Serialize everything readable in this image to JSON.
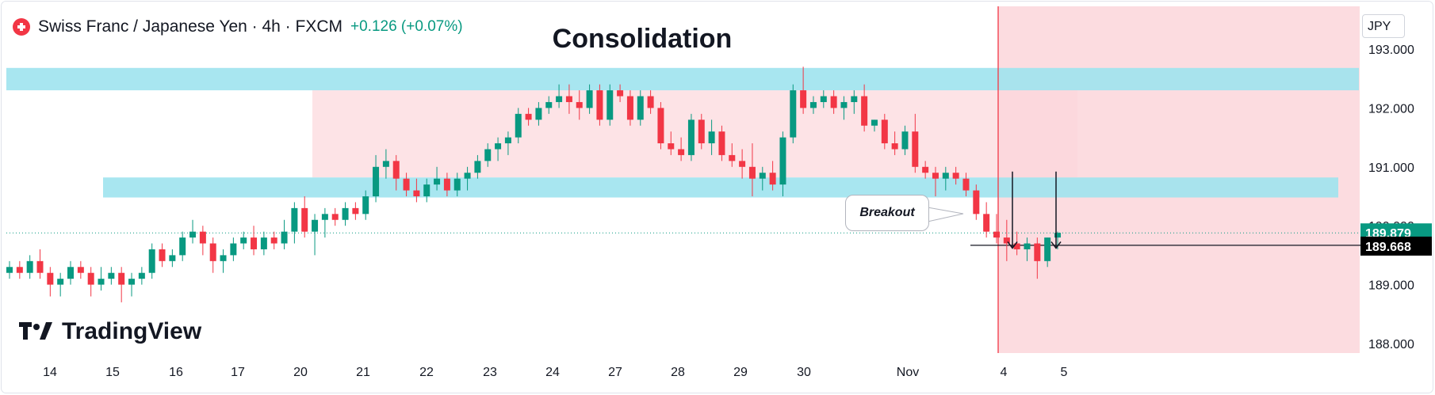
{
  "header": {
    "symbol": "Swiss Franc / Japanese Yen · 4h · FXCM",
    "change": "+0.126 (+0.07%)"
  },
  "annotations": {
    "title": "Consolidation",
    "callout": "Breakout"
  },
  "currency_button": "JPY",
  "logo_text": "TradingView",
  "colors": {
    "up": "#089981",
    "down": "#f23645",
    "zone": "#9fe3ee",
    "range": "#fde3e6"
  },
  "chart_data": {
    "type": "candlestick",
    "y_axis": {
      "ticks": [
        193.0,
        192.0,
        191.0,
        190.0,
        189.0,
        188.0
      ],
      "tick_labels": [
        "193.000",
        "192.000",
        "191.000",
        "190.000",
        "189.000",
        "188.000"
      ],
      "ylim": [
        187.85,
        193.4
      ]
    },
    "x_axis": {
      "tick_labels": [
        "14",
        "15",
        "16",
        "17",
        "20",
        "21",
        "22",
        "23",
        "24",
        "27",
        "28",
        "29",
        "30",
        "Nov",
        "4",
        "5"
      ]
    },
    "price_labels": [
      {
        "value": 189.879,
        "label": "189.879",
        "color": "#089981"
      },
      {
        "value": 189.668,
        "label": "189.668",
        "color": "#000000"
      }
    ],
    "zones": [
      {
        "name": "resistance",
        "low": 192.3,
        "high": 192.68
      },
      {
        "name": "support",
        "low": 190.48,
        "high": 190.82
      }
    ],
    "candles": [
      [
        189.2,
        189.4,
        189.1,
        189.3
      ],
      [
        189.3,
        189.4,
        189.1,
        189.2
      ],
      [
        189.2,
        189.5,
        189.1,
        189.4
      ],
      [
        189.4,
        189.6,
        189.1,
        189.2
      ],
      [
        189.2,
        189.3,
        188.8,
        189.0
      ],
      [
        189.0,
        189.2,
        188.8,
        189.1
      ],
      [
        189.1,
        189.4,
        189.0,
        189.3
      ],
      [
        189.3,
        189.4,
        189.1,
        189.2
      ],
      [
        189.2,
        189.3,
        188.8,
        189.0
      ],
      [
        189.0,
        189.3,
        188.9,
        189.1
      ],
      [
        189.1,
        189.3,
        189.0,
        189.2
      ],
      [
        189.2,
        189.3,
        188.7,
        189.0
      ],
      [
        189.0,
        189.2,
        188.8,
        189.1
      ],
      [
        189.1,
        189.3,
        189.0,
        189.2
      ],
      [
        189.2,
        189.7,
        189.1,
        189.6
      ],
      [
        189.6,
        189.7,
        189.3,
        189.4
      ],
      [
        189.4,
        189.6,
        189.3,
        189.5
      ],
      [
        189.5,
        189.9,
        189.4,
        189.8
      ],
      [
        189.8,
        190.1,
        189.7,
        189.9
      ],
      [
        189.9,
        190.0,
        189.5,
        189.7
      ],
      [
        189.7,
        189.8,
        189.2,
        189.4
      ],
      [
        189.4,
        189.6,
        189.2,
        189.5
      ],
      [
        189.5,
        189.8,
        189.4,
        189.7
      ],
      [
        189.7,
        189.9,
        189.6,
        189.8
      ],
      [
        189.8,
        190.0,
        189.5,
        189.6
      ],
      [
        189.6,
        189.9,
        189.5,
        189.8
      ],
      [
        189.8,
        189.9,
        189.6,
        189.7
      ],
      [
        189.7,
        190.1,
        189.6,
        189.9
      ],
      [
        189.9,
        190.4,
        189.7,
        190.3
      ],
      [
        190.3,
        190.5,
        189.8,
        189.9
      ],
      [
        189.9,
        190.2,
        189.5,
        190.1
      ],
      [
        190.1,
        190.3,
        189.8,
        190.2
      ],
      [
        190.2,
        190.3,
        190.0,
        190.1
      ],
      [
        190.1,
        190.4,
        190.0,
        190.3
      ],
      [
        190.3,
        190.4,
        190.1,
        190.2
      ],
      [
        190.2,
        190.6,
        190.1,
        190.5
      ],
      [
        190.5,
        191.2,
        190.4,
        191.0
      ],
      [
        191.0,
        191.3,
        190.8,
        191.1
      ],
      [
        191.1,
        191.2,
        190.6,
        190.8
      ],
      [
        190.8,
        190.9,
        190.5,
        190.6
      ],
      [
        190.6,
        190.8,
        190.4,
        190.5
      ],
      [
        190.5,
        190.8,
        190.4,
        190.7
      ],
      [
        190.7,
        191.0,
        190.6,
        190.8
      ],
      [
        190.8,
        190.9,
        190.5,
        190.6
      ],
      [
        190.6,
        190.9,
        190.5,
        190.8
      ],
      [
        190.8,
        191.0,
        190.6,
        190.9
      ],
      [
        190.9,
        191.2,
        190.8,
        191.1
      ],
      [
        191.1,
        191.4,
        191.0,
        191.3
      ],
      [
        191.3,
        191.5,
        191.1,
        191.4
      ],
      [
        191.4,
        191.6,
        191.2,
        191.5
      ],
      [
        191.5,
        192.0,
        191.4,
        191.9
      ],
      [
        191.9,
        192.0,
        191.7,
        191.8
      ],
      [
        191.8,
        192.1,
        191.7,
        192.0
      ],
      [
        192.0,
        192.2,
        191.9,
        192.1
      ],
      [
        192.1,
        192.4,
        192.0,
        192.2
      ],
      [
        192.2,
        192.4,
        191.9,
        192.1
      ],
      [
        192.1,
        192.3,
        191.8,
        192.0
      ],
      [
        192.0,
        192.4,
        191.9,
        192.3
      ],
      [
        192.3,
        192.4,
        191.7,
        191.8
      ],
      [
        191.8,
        192.4,
        191.7,
        192.3
      ],
      [
        192.3,
        192.4,
        192.1,
        192.2
      ],
      [
        192.2,
        192.3,
        191.7,
        191.8
      ],
      [
        191.8,
        192.3,
        191.7,
        192.2
      ],
      [
        192.2,
        192.3,
        191.9,
        192.0
      ],
      [
        192.0,
        192.1,
        191.3,
        191.4
      ],
      [
        191.4,
        191.6,
        191.2,
        191.3
      ],
      [
        191.3,
        191.5,
        191.1,
        191.2
      ],
      [
        191.2,
        191.9,
        191.1,
        191.8
      ],
      [
        191.8,
        191.9,
        191.3,
        191.4
      ],
      [
        191.4,
        191.8,
        191.2,
        191.6
      ],
      [
        191.6,
        191.7,
        191.1,
        191.2
      ],
      [
        191.2,
        191.4,
        191.0,
        191.1
      ],
      [
        191.1,
        191.3,
        190.8,
        191.0
      ],
      [
        191.0,
        191.4,
        190.5,
        190.8
      ],
      [
        190.8,
        191.0,
        190.6,
        190.9
      ],
      [
        190.9,
        191.1,
        190.6,
        190.7
      ],
      [
        190.7,
        191.6,
        190.5,
        191.5
      ],
      [
        191.5,
        192.4,
        191.4,
        192.3
      ],
      [
        192.3,
        192.7,
        191.9,
        192.0
      ],
      [
        192.0,
        192.2,
        191.9,
        192.1
      ],
      [
        192.1,
        192.3,
        192.0,
        192.2
      ],
      [
        192.2,
        192.3,
        191.9,
        192.0
      ],
      [
        192.0,
        192.2,
        191.8,
        192.1
      ],
      [
        192.1,
        192.3,
        191.9,
        192.2
      ],
      [
        192.2,
        192.4,
        191.6,
        191.7
      ],
      [
        191.7,
        191.8,
        191.6,
        191.8
      ],
      [
        191.8,
        191.9,
        191.3,
        191.4
      ],
      [
        191.4,
        191.6,
        191.2,
        191.3
      ],
      [
        191.3,
        191.7,
        191.2,
        191.6
      ],
      [
        191.6,
        191.9,
        190.9,
        191.0
      ],
      [
        191.0,
        191.1,
        190.8,
        190.9
      ],
      [
        190.9,
        191.0,
        190.5,
        190.8
      ],
      [
        190.8,
        191.0,
        190.6,
        190.9
      ],
      [
        190.9,
        191.0,
        190.7,
        190.8
      ],
      [
        190.8,
        190.9,
        190.5,
        190.6
      ],
      [
        190.6,
        190.7,
        190.1,
        190.2
      ],
      [
        190.2,
        190.4,
        189.8,
        189.9
      ],
      [
        189.9,
        190.2,
        189.7,
        189.8
      ],
      [
        189.8,
        190.1,
        189.4,
        189.7
      ],
      [
        189.7,
        189.9,
        189.5,
        189.6
      ],
      [
        189.6,
        189.8,
        189.4,
        189.7
      ],
      [
        189.7,
        189.8,
        189.1,
        189.4
      ],
      [
        189.4,
        189.8,
        189.3,
        189.8
      ],
      [
        189.8,
        189.9,
        189.6,
        189.88
      ]
    ]
  }
}
